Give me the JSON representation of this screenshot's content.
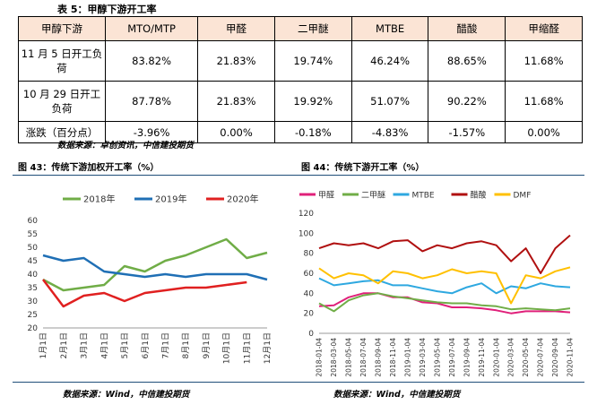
{
  "table": {
    "caption": "表 5：甲醇下游开工率",
    "headers": [
      "甲醇下游",
      "MTO/MTP",
      "甲醛",
      "二甲醚",
      "MTBE",
      "醋酸",
      "甲缩醛"
    ],
    "rows": [
      [
        "11 月 5 日开工负荷",
        "83.82%",
        "21.83%",
        "19.74%",
        "46.24%",
        "88.65%",
        "11.68%"
      ],
      [
        "10 月 29 日开工负荷",
        "87.78%",
        "21.83%",
        "19.92%",
        "51.07%",
        "90.22%",
        "11.68%"
      ],
      [
        "涨跌（百分点）",
        "-3.96%",
        "0.00%",
        "-0.18%",
        "-4.83%",
        "-1.57%",
        "0.00%"
      ]
    ],
    "source": "数据来源：卓创资讯，中信建投期货"
  },
  "fig43": {
    "caption": "图 43：传统下游加权开工率（%）",
    "source": "数据来源：Wind，中信建投期货"
  },
  "fig44": {
    "caption": "图 44：传统下游开工率（%）",
    "source": "数据来源：Wind，中信建投期货"
  },
  "chart_data": [
    {
      "type": "line",
      "x": [
        "1月1日",
        "2月1日",
        "3月1日",
        "4月1日",
        "5月1日",
        "6月1日",
        "7月1日",
        "8月1日",
        "9月1日",
        "10月1日",
        "11月1日",
        "12月1日"
      ],
      "ylim": [
        20,
        60
      ],
      "yticks": [
        20,
        25,
        30,
        35,
        40,
        45,
        50,
        55,
        60
      ],
      "legend": "top",
      "series": [
        {
          "name": "2018年",
          "color": "#70ad47",
          "values": [
            38,
            34,
            35,
            36,
            43,
            41,
            45,
            47,
            50,
            53,
            46,
            48
          ]
        },
        {
          "name": "2019年",
          "color": "#1f6fb5",
          "values": [
            47,
            45,
            46,
            41,
            40,
            39,
            40,
            39,
            40,
            40,
            40,
            38
          ]
        },
        {
          "name": "2020年",
          "color": "#e02020",
          "values": [
            38,
            28,
            32,
            33,
            30,
            33,
            34,
            35,
            35,
            36,
            37,
            null
          ]
        }
      ]
    },
    {
      "type": "line",
      "x": [
        "2018-01-04",
        "2018-03-04",
        "2018-05-04",
        "2018-07-04",
        "2018-09-04",
        "2018-11-04",
        "2019-01-04",
        "2019-03-04",
        "2019-05-04",
        "2019-07-04",
        "2019-09-04",
        "2019-11-04",
        "2020-01-04",
        "2020-03-04",
        "2020-05-04",
        "2020-07-04",
        "2020-09-04",
        "2020-11-04"
      ],
      "ylim": [
        0,
        120
      ],
      "yticks": [
        0,
        20,
        40,
        60,
        80,
        100,
        120
      ],
      "legend": "top",
      "series": [
        {
          "name": "甲醛",
          "color": "#e0207a",
          "values": [
            27,
            28,
            36,
            40,
            40,
            36,
            36,
            31,
            30,
            26,
            26,
            25,
            23,
            20,
            22,
            22,
            22,
            21
          ]
        },
        {
          "name": "二甲醚",
          "color": "#70ad47",
          "values": [
            30,
            22,
            33,
            38,
            40,
            37,
            35,
            33,
            31,
            30,
            30,
            28,
            27,
            24,
            25,
            24,
            23,
            25
          ]
        },
        {
          "name": "MTBE",
          "color": "#2ea8e0",
          "values": [
            55,
            48,
            50,
            52,
            53,
            48,
            48,
            45,
            42,
            40,
            46,
            50,
            40,
            47,
            45,
            50,
            47,
            46
          ]
        },
        {
          "name": "醋酸",
          "color": "#b01010",
          "values": [
            85,
            90,
            88,
            90,
            85,
            92,
            93,
            82,
            88,
            85,
            90,
            92,
            88,
            72,
            85,
            60,
            85,
            98
          ]
        },
        {
          "name": "DMF",
          "color": "#ffc000",
          "values": [
            65,
            55,
            60,
            58,
            50,
            62,
            60,
            55,
            58,
            64,
            60,
            62,
            60,
            30,
            58,
            55,
            62,
            66
          ]
        }
      ]
    }
  ]
}
